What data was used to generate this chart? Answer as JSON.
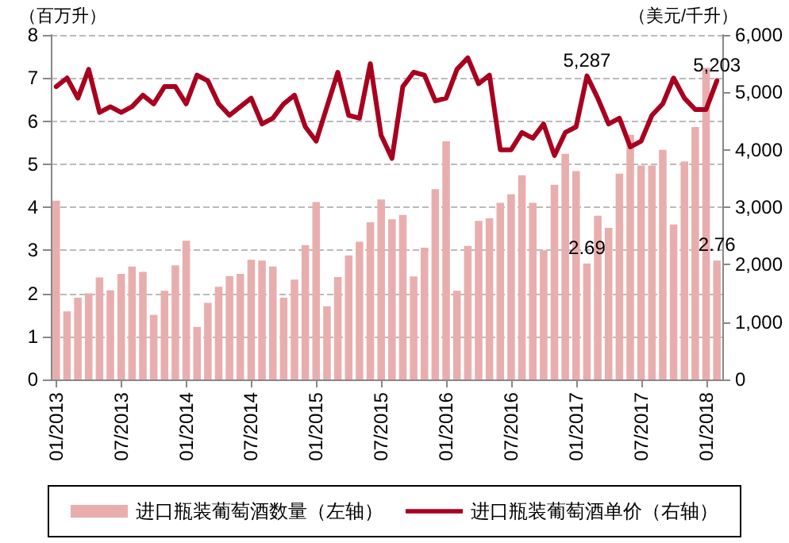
{
  "chart_data": {
    "type": "bar",
    "ylabel": "（百万升）",
    "y2label": "（美元/千升）",
    "categories": [
      "01/2013",
      null,
      null,
      null,
      null,
      null,
      "07/2013",
      null,
      null,
      null,
      null,
      null,
      "01/2014",
      null,
      null,
      null,
      null,
      null,
      "07/2014",
      null,
      null,
      null,
      null,
      null,
      "01/2015",
      null,
      null,
      null,
      null,
      null,
      "07/2015",
      null,
      null,
      null,
      null,
      null,
      "01/2016",
      null,
      null,
      null,
      null,
      null,
      "07/2016",
      null,
      null,
      null,
      null,
      null,
      "01/2017",
      null,
      null,
      null,
      null,
      null,
      "07/2017",
      null,
      null,
      null,
      null,
      null,
      "01/2018",
      null
    ],
    "series": [
      {
        "name": "进口瓶装葡萄酒数量（左轴）",
        "color": "#e8aeae",
        "values": [
          4.15,
          1.58,
          1.9,
          2.0,
          2.37,
          2.07,
          2.45,
          2.62,
          2.5,
          1.5,
          2.06,
          2.65,
          3.22,
          1.22,
          1.78,
          2.15,
          2.4,
          2.45,
          2.78,
          2.76,
          2.62,
          1.9,
          2.32,
          3.12,
          4.12,
          1.7,
          2.38,
          2.88,
          3.2,
          3.65,
          4.18,
          3.72,
          3.82,
          2.39,
          3.06,
          4.42,
          5.53,
          2.06,
          3.1,
          3.68,
          3.74,
          4.1,
          4.3,
          4.74,
          4.1,
          3.0,
          4.52,
          5.24,
          4.84,
          2.69,
          3.8,
          3.52,
          4.78,
          5.68,
          4.97,
          4.97,
          5.33,
          3.6,
          5.06,
          5.86,
          7.24,
          2.76
        ],
        "value_labels": [
          null,
          null,
          null,
          null,
          null,
          null,
          null,
          null,
          null,
          null,
          null,
          null,
          null,
          null,
          null,
          null,
          null,
          null,
          null,
          null,
          null,
          null,
          null,
          null,
          null,
          null,
          null,
          null,
          null,
          null,
          null,
          null,
          null,
          null,
          null,
          null,
          null,
          null,
          null,
          null,
          null,
          null,
          null,
          null,
          null,
          null,
          null,
          null,
          null,
          "2.69",
          null,
          null,
          null,
          null,
          null,
          null,
          null,
          null,
          null,
          null,
          null,
          "2.76"
        ]
      },
      {
        "name": "进口瓶装葡萄酒单价（右轴）",
        "type": "line",
        "axis": "y2",
        "color": "#a8001e",
        "values": [
          5100,
          5250,
          4900,
          5400,
          4650,
          4750,
          4650,
          4750,
          4950,
          4800,
          5100,
          5100,
          4800,
          5300,
          5200,
          4800,
          4600,
          4750,
          4900,
          4450,
          4550,
          4800,
          4950,
          4400,
          4150,
          4750,
          5350,
          4600,
          4550,
          5500,
          4250,
          3850,
          5100,
          5350,
          5300,
          4850,
          4900,
          5400,
          5600,
          5150,
          5300,
          4000,
          4000,
          4300,
          4200,
          4450,
          3900,
          4300,
          4400,
          5287,
          4900,
          4450,
          4550,
          4050,
          4150,
          4600,
          4800,
          5250,
          4900,
          4700,
          4700,
          5203
        ],
        "value_labels": [
          null,
          null,
          null,
          null,
          null,
          null,
          null,
          null,
          null,
          null,
          null,
          null,
          null,
          null,
          null,
          null,
          null,
          null,
          null,
          null,
          null,
          null,
          null,
          null,
          null,
          null,
          null,
          null,
          null,
          null,
          null,
          null,
          null,
          null,
          null,
          null,
          null,
          null,
          null,
          null,
          null,
          null,
          null,
          null,
          null,
          null,
          null,
          null,
          null,
          "5,287",
          null,
          null,
          null,
          null,
          null,
          null,
          null,
          null,
          null,
          null,
          null,
          "5,203"
        ]
      }
    ],
    "ylim": [
      0,
      8
    ],
    "yticks": [
      0,
      1,
      2,
      3,
      4,
      5,
      6,
      7,
      8
    ],
    "y2lim": [
      0,
      6000
    ],
    "y2ticks": [
      0,
      {
        "value": 1000,
        "label": "1,000"
      },
      {
        "value": 2000,
        "label": "2,000"
      },
      {
        "value": 3000,
        "label": "3,000"
      },
      {
        "value": 4000,
        "label": "4,000"
      },
      {
        "value": 5000,
        "label": "5,000"
      },
      {
        "value": 6000,
        "label": "6,000"
      }
    ],
    "grid": "y",
    "legend": "bottom",
    "marker": "none",
    "line_style": "solid"
  }
}
